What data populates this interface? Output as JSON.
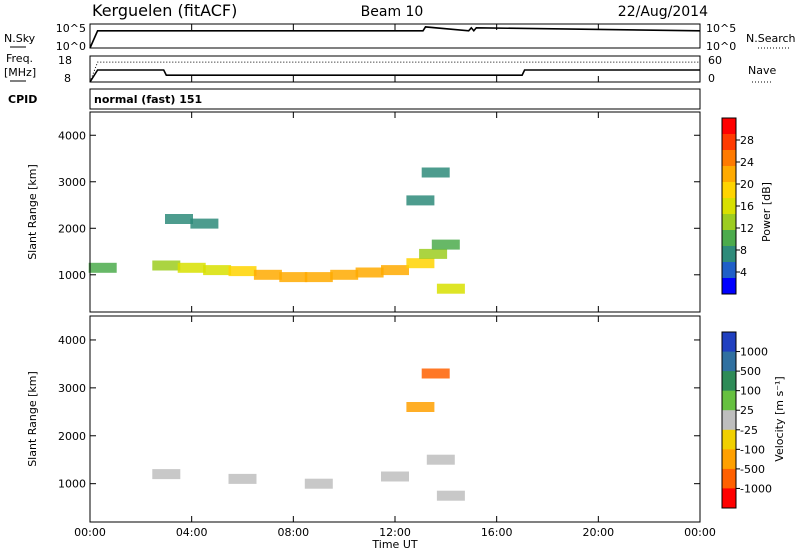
{
  "header": {
    "station": "Kerguelen (fitACF)",
    "beam": "Beam 10",
    "date": "22/Aug/2014"
  },
  "aux_panels": {
    "nsky_label": "N.Sky",
    "nsky_ticks": [
      "10^5",
      "10^0"
    ],
    "nsearch_label": "N.Search",
    "nsearch_ticks": [
      "10^5",
      "10^0"
    ],
    "freq_label_line1": "Freq.",
    "freq_label_line2": "[MHz]",
    "freq_ticks": [
      "18",
      "8"
    ],
    "nave_label": "Nave",
    "nave_ticks": [
      "60",
      "0"
    ],
    "cpid_label": "CPID",
    "cpid_value": "normal (fast) 151"
  },
  "x_axis": {
    "title": "Time UT",
    "tick_labels": [
      "00:00",
      "04:00",
      "08:00",
      "12:00",
      "16:00",
      "20:00",
      "00:00"
    ]
  },
  "power_panel": {
    "y_title": "Slant Range [km]",
    "y_ticks": [
      "4000",
      "3000",
      "2000",
      "1000"
    ],
    "colorbar_title": "Power [dB]",
    "colorbar_ticks": [
      "28",
      "24",
      "20",
      "16",
      "12",
      "8",
      "4"
    ],
    "colorbar_colors": [
      "#ff0000",
      "#ff3a00",
      "#ff7a00",
      "#ffaa00",
      "#ffd400",
      "#d8e000",
      "#9ccc20",
      "#4cab4c",
      "#2e8b7a",
      "#1f5fc8",
      "#0000ff"
    ]
  },
  "velocity_panel": {
    "y_title": "Slant Range [km]",
    "y_ticks": [
      "4000",
      "3000",
      "2000",
      "1000"
    ],
    "colorbar_title": "Velocity [m s⁻¹]",
    "colorbar_ticks": [
      "1000",
      "500",
      "100",
      "25",
      "-25",
      "-100",
      "-500",
      "-1000"
    ],
    "colorbar_colors": [
      "#2040c0",
      "#3070a0",
      "#2e8b57",
      "#66c040",
      "#bebebe",
      "#f0d000",
      "#ffa000",
      "#ff6000",
      "#ff0000"
    ]
  },
  "chart_data": [
    {
      "type": "line",
      "panel": "N.Sky / N.Search",
      "x_hours": [
        0,
        0.3,
        13.1,
        13.2,
        14.9,
        15.0,
        15.1,
        15.2,
        24
      ],
      "series": [
        {
          "name": "N.Sky",
          "values": [
            0,
            3.9,
            3.9,
            4.8,
            3.9,
            4.6,
            3.9,
            4.6,
            3.9
          ]
        }
      ]
    },
    {
      "type": "line",
      "panel": "Freq. / Nave",
      "x_hours": [
        0,
        0.3,
        2.9,
        3.0,
        17.0,
        17.1,
        24
      ],
      "series": [
        {
          "name": "Freq.",
          "values": [
            8,
            12.6,
            12.6,
            10.6,
            10.6,
            12.6,
            12.6
          ]
        },
        {
          "name": "Nave",
          "values": [
            0,
            46,
            46,
            46,
            46,
            46,
            46
          ]
        }
      ],
      "ylim_freq": [
        8,
        18
      ],
      "ylim_nave": [
        0,
        60
      ]
    },
    {
      "type": "heatmap",
      "panel": "Power",
      "xlim": [
        0,
        24
      ],
      "ylim": [
        200,
        4500
      ],
      "cells": [
        {
          "x": 0.5,
          "y": 1150,
          "v": 8
        },
        {
          "x": 3.0,
          "y": 1200,
          "v": 12
        },
        {
          "x": 4.0,
          "y": 1150,
          "v": 14
        },
        {
          "x": 5.0,
          "y": 1100,
          "v": 16
        },
        {
          "x": 6.0,
          "y": 1080,
          "v": 18
        },
        {
          "x": 7.0,
          "y": 1000,
          "v": 20
        },
        {
          "x": 8.0,
          "y": 950,
          "v": 22
        },
        {
          "x": 9.0,
          "y": 950,
          "v": 20
        },
        {
          "x": 10.0,
          "y": 1000,
          "v": 20
        },
        {
          "x": 11.0,
          "y": 1050,
          "v": 22
        },
        {
          "x": 12.0,
          "y": 1100,
          "v": 20
        },
        {
          "x": 13.0,
          "y": 1250,
          "v": 18
        },
        {
          "x": 13.5,
          "y": 1450,
          "v": 12
        },
        {
          "x": 14.0,
          "y": 1650,
          "v": 8
        },
        {
          "x": 13.0,
          "y": 2600,
          "v": 6
        },
        {
          "x": 13.6,
          "y": 3200,
          "v": 6
        },
        {
          "x": 14.2,
          "y": 700,
          "v": 16
        },
        {
          "x": 3.5,
          "y": 2200,
          "v": 6
        },
        {
          "x": 4.5,
          "y": 2100,
          "v": 6
        }
      ]
    },
    {
      "type": "heatmap",
      "panel": "Velocity",
      "xlim": [
        0,
        24
      ],
      "ylim": [
        200,
        4500
      ],
      "cells": [
        {
          "x": 3.0,
          "y": 1200,
          "v": 0
        },
        {
          "x": 6.0,
          "y": 1100,
          "v": 0
        },
        {
          "x": 9.0,
          "y": 1000,
          "v": 0
        },
        {
          "x": 12.0,
          "y": 1150,
          "v": 0
        },
        {
          "x": 13.8,
          "y": 1500,
          "v": 0
        },
        {
          "x": 13.6,
          "y": 3300,
          "v": -300
        },
        {
          "x": 13.0,
          "y": 2600,
          "v": -200
        },
        {
          "x": 14.2,
          "y": 750,
          "v": 0
        }
      ]
    }
  ]
}
